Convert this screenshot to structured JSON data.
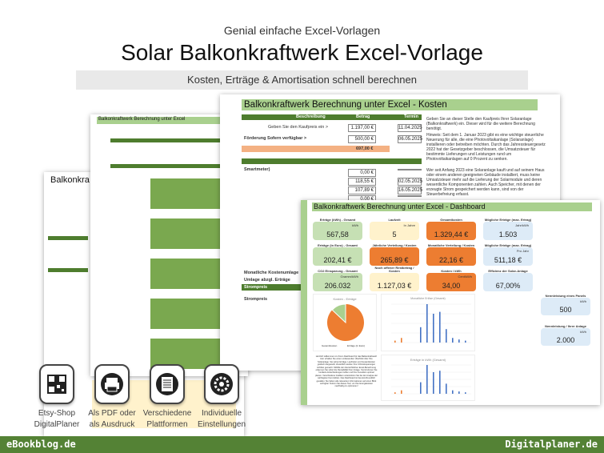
{
  "header": {
    "subtitle": "Genial einfache Excel-Vorlagen",
    "title": "Solar Balkonkraftwerk Excel-Vorlage",
    "banner": "Kosten, Erträge & Amortisation schnell berechnen"
  },
  "sheet_left": {
    "title": "Balkonkra"
  },
  "sheet_middle": {
    "title": "Balkonkraftwerk Berechnung unter Excel"
  },
  "kosten": {
    "title": "Balkonkraftwerk Berechnung unter Excel - Kosten",
    "headers": [
      "Beschreibung",
      "Betrag",
      "Termin"
    ],
    "rows": [
      {
        "label": "Geben Sie den Kaufpreis ein >",
        "value": "1.197,00 €",
        "date": "11.04.2025"
      },
      {
        "label": "Förderung  Sofern verfügbar >",
        "value": "500,00 €",
        "date": "06.05.2025"
      }
    ],
    "total": "697,00 €",
    "items": [
      {
        "value": "0,00 €",
        "date": ""
      },
      {
        "value": "118,55 €",
        "date": "02.05.2025"
      },
      {
        "value": "107,89 €",
        "date": "16.05.2025"
      },
      {
        "value": "0,00 €",
        "date": ""
      },
      {
        "value": "0,00 €",
        "date": ""
      },
      {
        "value": "0,00 €",
        "date": ""
      }
    ],
    "item_label": "Smartmeter)",
    "side_labels": [
      "Monatliche Kostenumlage",
      "Umlage abzgl. Erträge",
      "Strompreis",
      "Strompreis"
    ],
    "text1": "Geben Sie an dieser Stelle den Kaufpreis Ihrer Solaranlage (Balkonkraftwerk) ein. Dieser wird für die weitere Berechnung benötigt.",
    "text2": "Hinweis: Seit dem 1. Januar 2023 gibt es eine wichtige steuerliche Neuerung für alle, die eine Photovoltaikanlage (Solaranlage) installieren oder betreiben möchten. Durch das Jahressteuergesetz 2022 hat der Gesetzgeber beschlossen, die Umsatzsteuer für bestimmte Lieferungen und Leistungen rund um Photovoltaikanlagen auf 0 Prozent zu senken.",
    "text3": "Wer seit Anfang 2023 eine Solaranlage kauft und auf seinem Haus oder einem anderen geeigneten Gebäude installiert, muss keine Umsatzsteuer mehr auf die Lieferung der Solarmodule und deren wesentliche Komponenten zahlen. Auch Speicher, mit denen der erzeugte Strom gespeichert werden kann, sind von der Steuerbefreiung erfasst."
  },
  "dashboard": {
    "title": "Balkonkraftwerk Berechnung unter Excel - Dashboard",
    "tiles": [
      {
        "label": "Erträge (kWh) - Gesamt",
        "unit": "kWh",
        "value": "567,58",
        "color": "g"
      },
      {
        "label": "Laufzeit",
        "unit": "In Jahre",
        "value": "5",
        "color": "y"
      },
      {
        "label": "Gesamtkosten",
        "unit": "",
        "value": "1.329,44 €",
        "color": "o"
      },
      {
        "label": "Mögliche Erträge (max. Ertrag)",
        "unit": "Jahr/kWh",
        "value": "1.503",
        "color": "b"
      },
      {
        "label": "Erträge (in Euro) - Gesamt",
        "unit": "",
        "value": "202,41 €",
        "color": "g"
      },
      {
        "label": "Jährliche Verteilung / Kosten",
        "unit": "",
        "value": "265,89 €",
        "color": "o"
      },
      {
        "label": "Monatliche Verteilung / Kosten",
        "unit": "",
        "value": "22,16 €",
        "color": "o"
      },
      {
        "label": "Mögliche Erträge (max. Ertrag)",
        "unit": "Pro Jahr",
        "value": "511,18 €",
        "color": "b"
      },
      {
        "label": "CO2 Einsparung - Gesamt",
        "unit": "Gramm/kWh",
        "value": "206.032",
        "color": "g"
      },
      {
        "label": "Noch offener Restbetrag / Kosten",
        "unit": "",
        "value": "1.127,03 €",
        "color": "y"
      },
      {
        "label": "Kosten / kWh",
        "unit": "Cent/kWh",
        "value": "34,00",
        "color": "o"
      },
      {
        "label": "Effizienz der Solar-Anlage",
        "unit": "",
        "value": "67,00%",
        "color": "b"
      },
      {
        "label": "Nennleistung eines Panels",
        "unit": "kWh",
        "value": "500",
        "color": "b"
      },
      {
        "label": "Nennleistung / Ihrer Anlage",
        "unit": "kWh",
        "value": "2.000",
        "color": "b"
      }
    ],
    "pie_title": "Kosten - Erträge",
    "pie_legend": [
      "Gesamtkosten",
      "Erträge (in Euro)"
    ],
    "pie_share": 0.87,
    "chart1_title": "Monatliche Erlöse (Gesamt)",
    "chart2_title": "Erträge in kWh (Gesamt)",
    "bars": [
      {
        "v": 0.05,
        "c": "#ed7d31"
      },
      {
        "v": 0.12,
        "c": "#ed7d31"
      },
      {
        "v": 0,
        "c": "#4472c4"
      },
      {
        "v": 0,
        "c": "#4472c4"
      },
      {
        "v": 0.4,
        "c": "#4472c4"
      },
      {
        "v": 1,
        "c": "#4472c4"
      },
      {
        "v": 0.75,
        "c": "#4472c4"
      },
      {
        "v": 0.8,
        "c": "#4472c4"
      },
      {
        "v": 0.35,
        "c": "#4472c4"
      },
      {
        "v": 0.12,
        "c": "#4472c4"
      },
      {
        "v": 0.08,
        "c": "#4472c4"
      },
      {
        "v": 0.05,
        "c": "#4472c4"
      }
    ],
    "intro": "Herzlich willkommen zu Ihrem Dashboard für das Balkonkraftwerk! Hier erhalten Sie einen umfassenden Überblick über Ihre Solaranlage. Sie sehen Erträge, Laufzeiten und Gesamtkosten grafisch dargestellt. Zusätzlich werden Ihre CO2-Einsparungen sichtbar gemacht. Mithilfe der übersichtlichen Excel-Berechnung erkennen Sie sofort die Rentabilität Ihrer Anlage. Somit können Sie fundierte Entscheidungen treffen und Ihre Investition optimal planen. Verschiedene Grafiken unterstützen Sie bei der Analyse der wichtigsten Kennzahlen. Das Dashboard ist benutzerfreundlich gestaltet. Sie haben alle relevanten Informationen auf einen Blick verfügbar. Nutzen Sie dieses Tool, um Ihre Energiekosten nachhaltig zu optimieren!"
  },
  "features": [
    {
      "icon": "qr-code-icon",
      "label": "Etsy-Shop\nDigitalPlaner"
    },
    {
      "icon": "printer-icon",
      "label": "Als PDF oder\nals Ausdruck"
    },
    {
      "icon": "document-icon",
      "label": "Verschiedene\nPlattformen"
    },
    {
      "icon": "gear-icon",
      "label": "Individuelle\nEinstellungen"
    }
  ],
  "footer": {
    "left": "eBookblog.de",
    "right": "Digitalplaner.de"
  }
}
